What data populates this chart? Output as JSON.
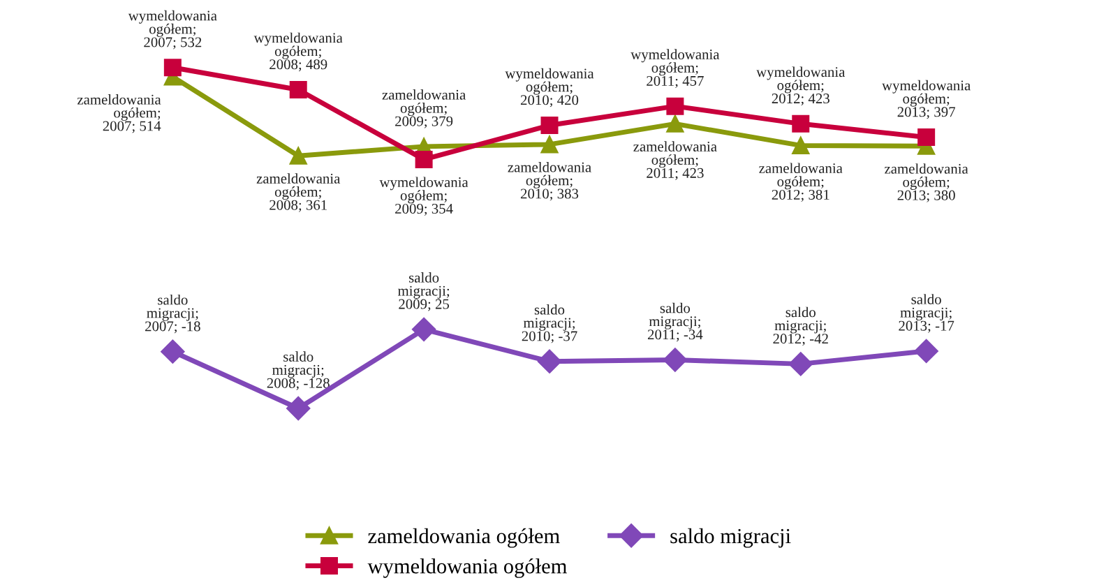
{
  "chart_data": {
    "type": "line",
    "categories": [
      null,
      null,
      null,
      null,
      null,
      null,
      null
    ],
    "series": [
      {
        "name": "zameldowania ogółem",
        "color": "#8a9a0c",
        "marker": "triangle",
        "values": [
          514,
          361,
          379,
          383,
          423,
          381,
          380
        ],
        "value_labels": [
          "zameldowania ogółem; 2007; 514",
          "zameldowania ogółem; 2008; 361",
          "zameldowania ogółem; 2009; 379",
          "zameldowania ogółem; 2010; 383",
          "zameldowania ogółem; 2011; 423",
          "zameldowania ogółem; 2012; 381",
          "zameldowania ogółem; 2013; 380"
        ]
      },
      {
        "name": "wymeldowania ogółem",
        "color": "#c8003c",
        "marker": "square",
        "values": [
          532,
          489,
          354,
          420,
          457,
          423,
          397
        ],
        "value_labels": [
          "wymeldowania ogółem; 2007; 532",
          "wymeldowania ogółem; 2008; 489",
          "wymeldowania ogółem; 2009; 354",
          "wymeldowania ogółem; 2010; 420",
          "wymeldowania ogółem; 2011; 457",
          "wymeldowania ogółem; 2012; 423",
          "wymeldowania ogółem; 2013; 397"
        ]
      },
      {
        "name": "saldo migracji",
        "color": "#8048b8",
        "marker": "diamond",
        "values": [
          -18,
          -128,
          25,
          -37,
          -34,
          -42,
          -17
        ],
        "value_labels": [
          "saldo migracji; 2007; -18",
          "saldo migracji; 2008; -128",
          "saldo migracji; 2009; 25",
          "saldo migracji; 2010; -37",
          "saldo migracji; 2011; -34",
          "saldo migracji; 2012; -42",
          "saldo migracji; 2013; -17"
        ]
      }
    ],
    "legend": "bottom",
    "tick_labels": false
  }
}
